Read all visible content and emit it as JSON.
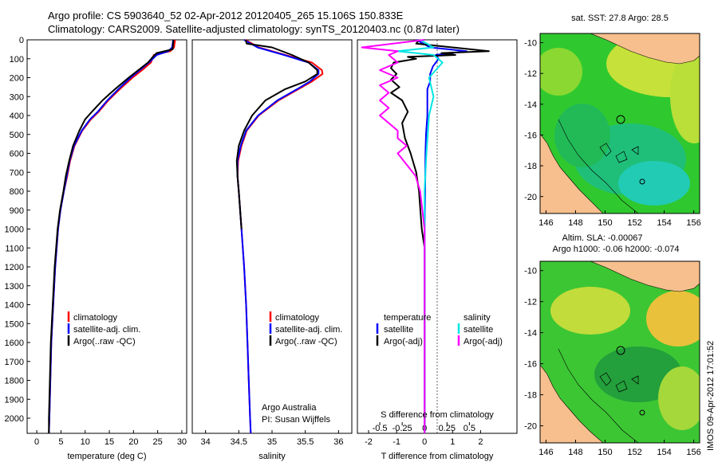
{
  "header": {
    "title_line1": "Argo profile: CS 5903640_52 02-Apr-2012 20120405_265 15.106S 150.833E",
    "title_line2": "Climatology: CARS2009. Satellite-adjusted climatology: synTS_20120403.nc (0.87d later)"
  },
  "side_stamp": "IMOS 09-Apr-2012 17:01:52",
  "depth_axis": {
    "min": 0,
    "max": 2080,
    "ticks": [
      0,
      100,
      200,
      300,
      400,
      500,
      600,
      700,
      800,
      900,
      1000,
      1100,
      1200,
      1300,
      1400,
      1500,
      1600,
      1700,
      1800,
      1900,
      2000
    ]
  },
  "colors": {
    "climatology": "#ff0000",
    "satellite": "#0000ff",
    "argo": "#000000",
    "salinity_satellite": "#00e5e5",
    "salinity_argo": "#ff00ff"
  },
  "chart_data": [
    {
      "id": "temperature",
      "type": "line",
      "xlabel": "temperature (deg C)",
      "xlim": [
        -2,
        31
      ],
      "xticks": [
        0,
        5,
        10,
        15,
        20,
        25,
        30
      ],
      "ylim": [
        0,
        2080
      ],
      "legend": [
        "climatology",
        "satellite-adj. clim.",
        "Argo(..raw -QC)"
      ],
      "series": [
        {
          "name": "climatology",
          "depth": [
            0,
            40,
            60,
            80,
            120,
            160,
            200,
            260,
            320,
            380,
            420,
            480,
            560,
            640,
            720,
            800,
            900,
            1000,
            1200,
            1400,
            1600,
            1800,
            2000,
            2080
          ],
          "values": [
            28.6,
            28.4,
            27.6,
            24.2,
            23.6,
            21.8,
            19.8,
            17.2,
            14.8,
            12.8,
            11.2,
            9.4,
            7.8,
            6.9,
            6.3,
            5.6,
            4.9,
            4.4,
            3.8,
            3.4,
            3.0,
            2.8,
            2.6,
            2.5
          ]
        },
        {
          "name": "satellite-adj. clim.",
          "depth": [
            0,
            40,
            60,
            80,
            120,
            160,
            200,
            260,
            320,
            380,
            420,
            480,
            560,
            640,
            720,
            800,
            900,
            1000,
            1200,
            1400,
            1600,
            1800,
            2000,
            2080
          ],
          "values": [
            28.2,
            28.0,
            27.2,
            24.8,
            23.2,
            21.3,
            19.4,
            16.9,
            14.6,
            12.6,
            11.0,
            9.3,
            7.7,
            6.8,
            6.2,
            5.6,
            4.9,
            4.4,
            3.8,
            3.4,
            3.0,
            2.8,
            2.6,
            2.5
          ]
        },
        {
          "name": "Argo(..raw -QC)",
          "depth": [
            0,
            20,
            50,
            70,
            90,
            120,
            160,
            200,
            260,
            320,
            380,
            420,
            480,
            560,
            640,
            720,
            800,
            900,
            1000,
            1200,
            1400,
            1600,
            1800,
            2000,
            2080
          ],
          "values": [
            28.3,
            28.2,
            28.1,
            24.8,
            24.0,
            23.0,
            21.0,
            19.0,
            16.2,
            13.6,
            11.4,
            10.0,
            8.8,
            7.5,
            6.7,
            6.0,
            5.5,
            4.8,
            4.3,
            3.7,
            3.3,
            2.9,
            2.7,
            2.5,
            2.5
          ]
        }
      ]
    },
    {
      "id": "salinity",
      "type": "line",
      "xlabel": "salinity",
      "xlim": [
        33.8,
        36.2
      ],
      "xticks": [
        34,
        34.5,
        35,
        35.5,
        36
      ],
      "ylim": [
        0,
        2080
      ],
      "legend": [
        "climatology",
        "satellite-adj. clim.",
        "Argo(..raw -QC)"
      ],
      "annotations": [
        "Argo Australia",
        "PI: Susan Wijffels"
      ],
      "series": [
        {
          "name": "climatology",
          "depth": [
            0,
            40,
            80,
            120,
            160,
            180,
            220,
            260,
            320,
            400,
            480,
            560,
            640,
            720,
            800,
            900,
            1000,
            1200,
            1400,
            1600,
            1800,
            2000,
            2080
          ],
          "values": [
            34.6,
            34.8,
            35.2,
            35.6,
            35.75,
            35.76,
            35.6,
            35.4,
            35.1,
            34.8,
            34.62,
            34.54,
            34.49,
            34.48,
            34.5,
            34.52,
            34.54,
            34.58,
            34.61,
            34.63,
            34.65,
            34.67,
            34.68
          ]
        },
        {
          "name": "satellite-adj. clim.",
          "depth": [
            0,
            40,
            80,
            120,
            160,
            180,
            220,
            260,
            320,
            400,
            480,
            560,
            640,
            720,
            800,
            900,
            1000,
            1200,
            1400,
            1600,
            1800,
            2000,
            2080
          ],
          "values": [
            34.58,
            34.78,
            35.18,
            35.55,
            35.7,
            35.7,
            35.57,
            35.38,
            35.08,
            34.79,
            34.61,
            34.53,
            34.48,
            34.48,
            34.5,
            34.52,
            34.54,
            34.58,
            34.61,
            34.63,
            34.65,
            34.67,
            34.68
          ]
        },
        {
          "name": "Argo(..raw -QC)",
          "depth": [
            0,
            20,
            40,
            80,
            120,
            160,
            180,
            220,
            260,
            320,
            400,
            480,
            560,
            640,
            720,
            800,
            900,
            1000
          ],
          "values": [
            34.6,
            34.62,
            35.0,
            35.3,
            35.55,
            35.68,
            35.68,
            35.5,
            35.2,
            34.9,
            34.7,
            34.58,
            34.5,
            34.47,
            34.48,
            34.5,
            34.52,
            34.54
          ]
        }
      ]
    },
    {
      "id": "differences",
      "type": "line",
      "xlabel": "T difference from climatology",
      "xlabel_top": "S difference from climatology",
      "xlim": [
        -2.4,
        3.3
      ],
      "xticks": [
        -2,
        -1,
        0,
        1,
        2
      ],
      "top_ticks": [
        -0.5,
        -0.25,
        0,
        0.25,
        0.5
      ],
      "ylim": [
        0,
        2080
      ],
      "legend_headers": [
        "temperature",
        "salinity"
      ],
      "legend": [
        "satellite",
        "Argo(-adj)",
        "satellite",
        "Argo(-adj)"
      ],
      "series": [
        {
          "name": "temperature satellite",
          "depth": [
            0,
            40,
            60,
            80,
            100,
            140,
            180,
            220,
            260,
            320,
            400,
            500,
            600,
            800,
            1000,
            1400,
            2080
          ],
          "values": [
            -0.3,
            0.2,
            1.5,
            0.4,
            0.5,
            0.3,
            0.2,
            0.2,
            0.1,
            0.1,
            0.1,
            0.05,
            0.03,
            0.02,
            0.0,
            0.0,
            0.0
          ]
        },
        {
          "name": "temperature Argo(-adj)",
          "depth": [
            0,
            20,
            40,
            60,
            70,
            80,
            90,
            100,
            120,
            150,
            180,
            210,
            250,
            280,
            320,
            380,
            440,
            520,
            600,
            700,
            800,
            900,
            1000,
            1100,
            2080
          ],
          "values": [
            -0.2,
            -0.3,
            1.0,
            2.3,
            0.6,
            1.1,
            -0.6,
            -0.3,
            -1.1,
            -1.2,
            -1.0,
            -1.2,
            -0.9,
            -1.2,
            -0.8,
            -0.6,
            -0.8,
            -0.7,
            -0.5,
            -0.3,
            -0.2,
            -0.15,
            -0.1,
            0.0,
            0.0
          ]
        },
        {
          "name": "salinity satellite",
          "depth": [
            0,
            40,
            60,
            80,
            120,
            200,
            300,
            400,
            600,
            800,
            1000,
            2080
          ],
          "values": [
            -0.05,
            0.1,
            -0.3,
            0.1,
            0.2,
            0.05,
            0.1,
            0.05,
            0.02,
            0.0,
            0.0,
            0.0
          ]
        },
        {
          "name": "salinity Argo(-adj)",
          "depth": [
            0,
            40,
            60,
            80,
            120,
            160,
            200,
            240,
            280,
            320,
            360,
            400,
            440,
            480,
            520,
            560,
            600,
            660,
            720,
            800,
            1000,
            2080
          ],
          "values": [
            0.0,
            -0.7,
            -0.3,
            -0.4,
            -0.3,
            -0.5,
            -0.3,
            -0.5,
            -0.4,
            -0.5,
            -0.4,
            -0.5,
            -0.4,
            -0.3,
            -0.3,
            -0.2,
            -0.3,
            -0.2,
            -0.1,
            -0.05,
            0.0,
            0.0
          ]
        }
      ]
    },
    {
      "id": "sst_map",
      "type": "heatmap",
      "title": "sat. SST: 27.8 Argo: 28.5",
      "xlim": [
        145.6,
        156.4
      ],
      "ylim": [
        -21.1,
        -9.4
      ],
      "xticks": [
        146,
        148,
        150,
        152,
        154,
        156
      ],
      "yticks": [
        -10,
        -12,
        -14,
        -16,
        -18,
        -20
      ],
      "marker": {
        "lon": 150.833,
        "lat": -15.106
      }
    },
    {
      "id": "sla_map",
      "type": "heatmap",
      "title_line1": "Altim. SLA: -0.00067",
      "title_line2": "Argo h1000: -0.06 h2000: -0.074",
      "xlim": [
        145.6,
        156.4
      ],
      "ylim": [
        -21.1,
        -9.4
      ],
      "xticks": [
        146,
        148,
        150,
        152,
        154,
        156
      ],
      "yticks": [
        -10,
        -12,
        -14,
        -16,
        -18,
        -20
      ],
      "marker": {
        "lon": 150.833,
        "lat": -15.106
      }
    }
  ]
}
